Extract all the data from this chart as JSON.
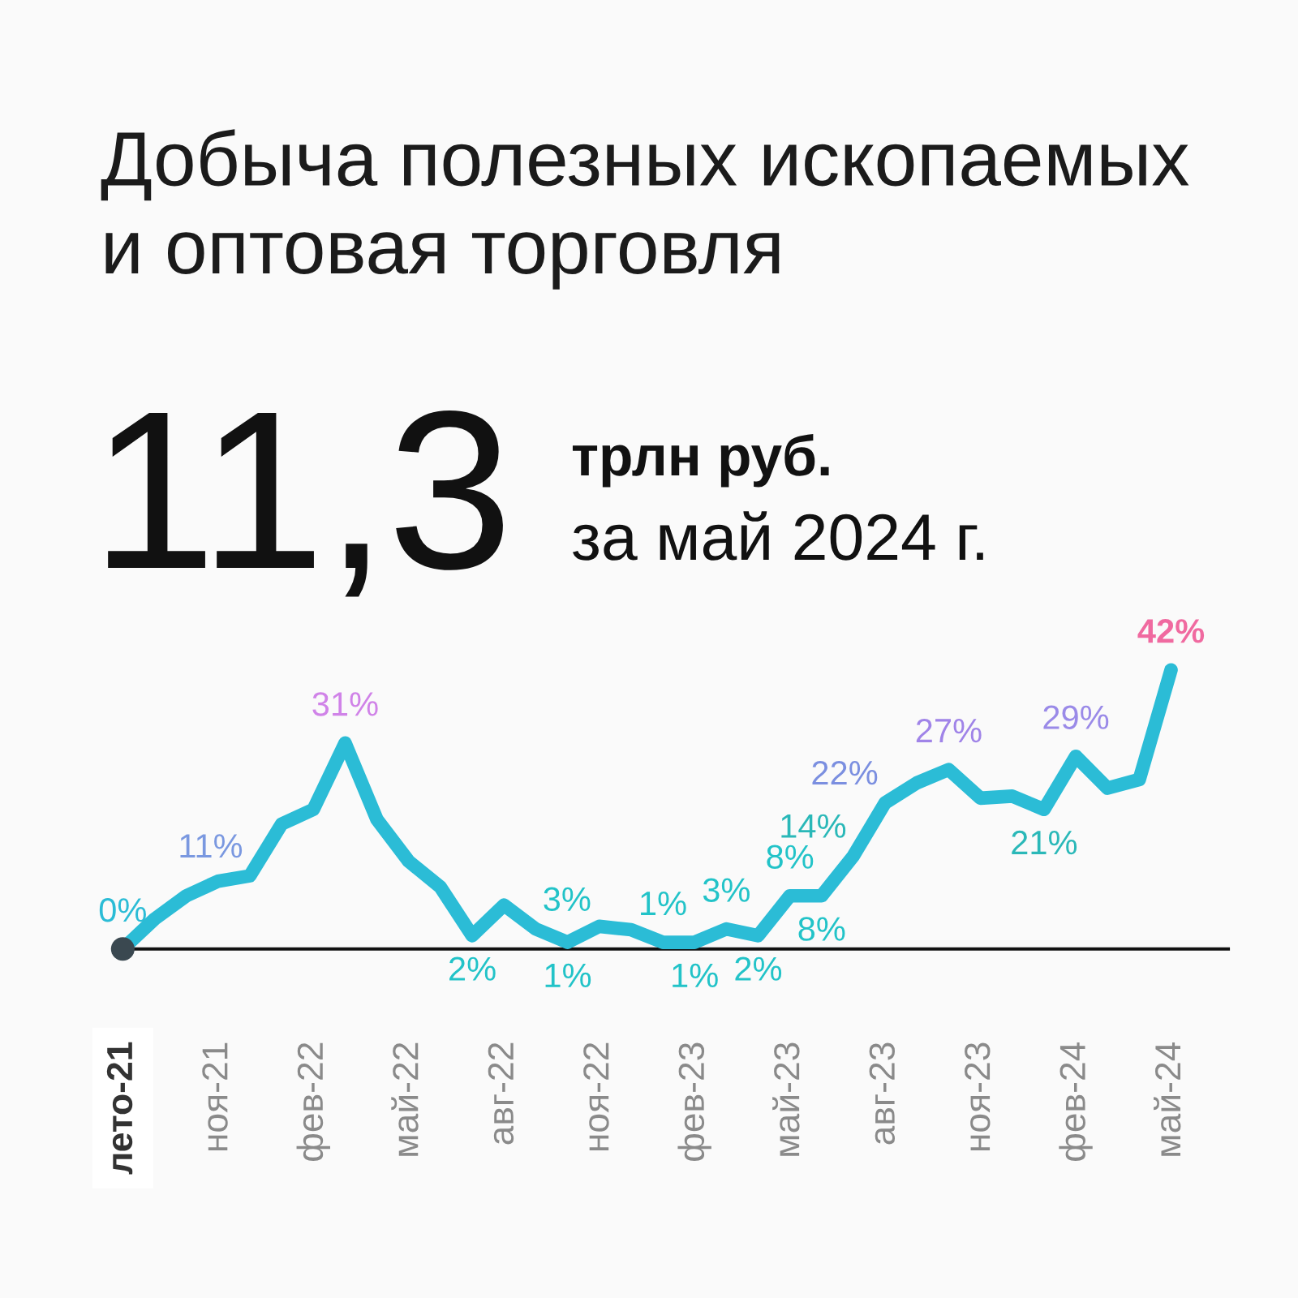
{
  "chart_data": {
    "type": "line",
    "title": "Добыча полезных ископаемых\nи оптовая торговля",
    "annotations": [
      "11,3",
      "трлн руб.",
      "за май 2024 г."
    ],
    "categories": [
      "лето-21",
      null,
      null,
      "ноя-21",
      null,
      null,
      "фев-22",
      null,
      null,
      "май-22",
      null,
      null,
      "авг-22",
      null,
      null,
      "ноя-22",
      null,
      null,
      "фев-23",
      null,
      null,
      "май-23",
      null,
      null,
      "авг-23",
      null,
      null,
      "ноя-23",
      null,
      null,
      "фев-24",
      null,
      null,
      "май-24"
    ],
    "tick_labels": "x",
    "series": [
      {
        "color": "#2bbcd6",
        "colors": [
          "#22c3c8",
          "#22c3c8",
          "#24c1cc",
          "#2abcd4",
          "#7a98e0",
          "#52a8e8",
          "#6aa0ec",
          "#d083e8",
          "#55a8e8",
          "#30b8da",
          "#24c1cc",
          "#22c3c8",
          "#22c3c8",
          "#22c3c8",
          "#22c3c8",
          "#22c3c8",
          "#22c3c8",
          "#22c3c8",
          "#22c3c8",
          "#22c3c8",
          "#22c3c8",
          "#22c3c8",
          "#22c3c8",
          "#2ab8b8",
          "#7b8fe0",
          "#44aae8",
          "#a084e8",
          "#3eaee6",
          "#3eaee6",
          "#2ab8b8",
          "#9a8ae8",
          "#44aae8",
          "#4aa8ea",
          "#f06aa0"
        ],
        "values": [
          0,
          4.5,
          8,
          10.2,
          11,
          18.8,
          21,
          31,
          19.5,
          13.2,
          9.3,
          2,
          6.6,
          3,
          1,
          3.4,
          2.9,
          1,
          1,
          3,
          2,
          8,
          8,
          14,
          22,
          25,
          27,
          22.7,
          23,
          21,
          29,
          24.2,
          25.5,
          42
        ],
        "value_labels": [
          null,
          null,
          null,
          null,
          "11%",
          null,
          null,
          "31%",
          null,
          null,
          null,
          "2%",
          null,
          "3%",
          "1%",
          null,
          null,
          "1%",
          "1%",
          "3%",
          "2%",
          "8%",
          "8%",
          "14%",
          "22%",
          null,
          "27%",
          null,
          null,
          "21%",
          "29%",
          null,
          null,
          "42%"
        ]
      },
      {
        "type": "scatter",
        "color": "#3a4850",
        "marker": "circle",
        "values": [
          0,
          null,
          null,
          null,
          null,
          null,
          null,
          null,
          null,
          null,
          null,
          null,
          null,
          null,
          null,
          null,
          null,
          null,
          null,
          null,
          null,
          null,
          null,
          null,
          null,
          null,
          null,
          null,
          null,
          null,
          null,
          null,
          null,
          null
        ],
        "value_labels": [
          "0%",
          null,
          null,
          null,
          null,
          null,
          null,
          null,
          null,
          null,
          null,
          null,
          null,
          null,
          null,
          null,
          null,
          null,
          null,
          null,
          null,
          null,
          null,
          null,
          null,
          null,
          null,
          null,
          null,
          null,
          null,
          null,
          null,
          null
        ]
      }
    ]
  }
}
